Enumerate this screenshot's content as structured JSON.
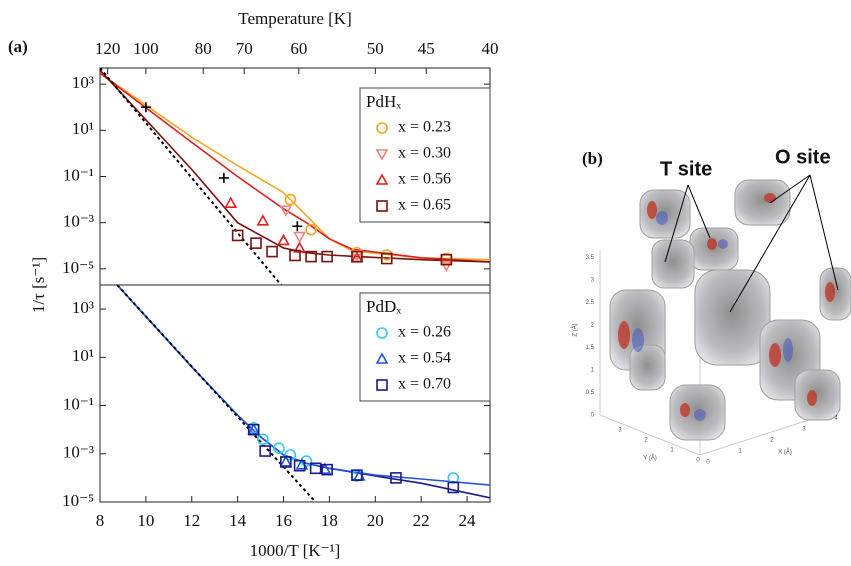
{
  "panel_a_label": "(a)",
  "chart_data": [
    {
      "type": "scatter",
      "log_y": true,
      "x2label": "Temperature [K]",
      "x2lim": [
        125,
        40
      ],
      "x2ticks": [
        120,
        100,
        80,
        70,
        60,
        50,
        45,
        40
      ],
      "ylabel": "1/τ [s⁻¹]",
      "xlim": [
        8,
        25
      ],
      "ylim": [
        2e-06,
        5000
      ],
      "yticks": [
        {
          "value": 1000,
          "label": "10³"
        },
        {
          "value": 10,
          "label": "10¹"
        },
        {
          "value": 0.1,
          "label": "10⁻¹"
        },
        {
          "value": 0.001,
          "label": "10⁻³"
        },
        {
          "value": 1e-05,
          "label": "10⁻⁵"
        }
      ],
      "legend_title": "PdHₓ",
      "series": [
        {
          "name": "x = 0.23",
          "color": "#f5a623",
          "marker": "circle",
          "x": [
            16.3,
            17.2,
            19.2,
            20.5,
            23.1
          ],
          "values": [
            0.01,
            0.0005,
            5e-05,
            4e-05,
            2.8e-05
          ]
        },
        {
          "name": "x = 0.30",
          "color": "#f08080",
          "marker": "triangle-down",
          "x": [
            16.1,
            16.7,
            19.2,
            23.1
          ],
          "values": [
            0.0035,
            0.00025,
            4e-05,
            1.4e-05
          ]
        },
        {
          "name": "x = 0.56",
          "color": "#e02020",
          "marker": "triangle",
          "x": [
            13.7,
            15.1,
            16.0,
            16.7,
            19.2
          ],
          "values": [
            0.007,
            0.0012,
            0.00017,
            8e-05,
            3e-05
          ]
        },
        {
          "name": "x = 0.65",
          "color": "#7a1010",
          "marker": "square",
          "x": [
            14.0,
            14.8,
            15.5,
            16.5,
            17.2,
            17.9,
            19.2,
            20.5,
            23.1
          ],
          "values": [
            0.00028,
            0.00013,
            5.6e-05,
            3.8e-05,
            3.4e-05,
            3.4e-05,
            3.4e-05,
            2.8e-05,
            2.5e-05
          ]
        },
        {
          "color": "#000000",
          "marker": "plus",
          "x": [
            10,
            13.4,
            16.6
          ],
          "values": [
            100,
            0.087,
            0.0007
          ]
        }
      ],
      "fits": [
        {
          "color": "#f5a623",
          "x": [
            8,
            12,
            14,
            16,
            17,
            18,
            19,
            22,
            25
          ],
          "values": [
            3000,
            5,
            0.3,
            0.02,
            0.002,
            0.0002,
            6e-05,
            3e-05,
            2.5e-05
          ]
        },
        {
          "color": "#e02020",
          "x": [
            8,
            12,
            14,
            16,
            17,
            18,
            19,
            22,
            25
          ],
          "values": [
            3000,
            3,
            0.1,
            0.004,
            0.001,
            0.0002,
            7e-05,
            3e-05,
            2e-05
          ]
        },
        {
          "color": "#7a1010",
          "x": [
            8,
            12,
            14,
            16,
            17,
            18,
            19,
            22,
            25
          ],
          "values": [
            4000,
            0.2,
            0.001,
            8e-05,
            5e-05,
            4e-05,
            3.5e-05,
            2.5e-05,
            2e-05
          ]
        },
        {
          "color": "#000000",
          "dashed": true,
          "x": [
            8,
            15.9
          ],
          "values": [
            5000,
            2e-06
          ]
        }
      ]
    },
    {
      "type": "scatter",
      "log_y": true,
      "xlabel": "1000/T [K⁻¹]",
      "xlim": [
        8,
        25
      ],
      "xticks": [
        8,
        10,
        12,
        14,
        16,
        18,
        20,
        22,
        24
      ],
      "ylim": [
        1e-05,
        10000
      ],
      "yticks": [
        {
          "value": 1000,
          "label": "10³"
        },
        {
          "value": 10,
          "label": "10¹"
        },
        {
          "value": 0.1,
          "label": "10⁻¹"
        },
        {
          "value": 0.001,
          "label": "10⁻³"
        },
        {
          "value": 1e-05,
          "label": "10⁻⁵"
        }
      ],
      "legend_title": "PdDₓ",
      "series": [
        {
          "name": "x = 0.26",
          "color": "#33ccee",
          "marker": "circle",
          "x": [
            14.7,
            15.1,
            15.8,
            16.3,
            17.0,
            19.2,
            23.4
          ],
          "values": [
            0.012,
            0.004,
            0.0017,
            0.0009,
            0.0005,
            0.00012,
            0.0001
          ]
        },
        {
          "name": "x = 0.54",
          "color": "#2255dd",
          "marker": "triangle",
          "x": [
            14.7,
            16.1,
            16.8,
            17.8,
            19.3
          ],
          "values": [
            0.01,
            0.00046,
            0.00035,
            0.00023,
            0.00012
          ]
        },
        {
          "name": "x = 0.70",
          "color": "#1a1a8c",
          "marker": "square",
          "x": [
            14.7,
            15.2,
            16.1,
            16.7,
            17.4,
            17.9,
            19.2,
            20.9,
            23.4
          ],
          "values": [
            0.01,
            0.0013,
            0.00046,
            0.00032,
            0.00025,
            0.00022,
            0.00013,
            0.0001,
            4e-05
          ]
        }
      ],
      "fits": [
        {
          "color": "#1a1a8c",
          "x": [
            8.75,
            12,
            14,
            15,
            16,
            17,
            18,
            20,
            22,
            25
          ],
          "values": [
            10000,
            4,
            0.04,
            0.005,
            0.0009,
            0.0004,
            0.00025,
            0.00012,
            6e-05,
            1.5e-05
          ]
        },
        {
          "color": "#2255dd",
          "x": [
            8.75,
            12,
            14,
            15,
            16,
            17,
            18,
            20,
            22,
            25
          ],
          "values": [
            10000,
            4,
            0.04,
            0.005,
            0.0009,
            0.0004,
            0.00025,
            0.00013,
            9e-05,
            5e-05
          ]
        },
        {
          "color": "#000000",
          "dashed": true,
          "x": [
            8.75,
            17.4
          ],
          "values": [
            10000,
            1e-05
          ]
        }
      ]
    }
  ],
  "panel_b": {
    "label": "(b)",
    "annotations": [
      "T site",
      "O site"
    ],
    "axis_labels": [
      "Z (Å)",
      "Y (Å)",
      "X (Å)"
    ],
    "z_ticks": [
      0,
      0.5,
      1,
      1.5,
      2,
      2.5,
      3,
      3.5
    ],
    "y_ticks": [
      3,
      2,
      1,
      0
    ],
    "x_ticks": [
      0,
      1,
      2,
      3,
      4
    ]
  }
}
